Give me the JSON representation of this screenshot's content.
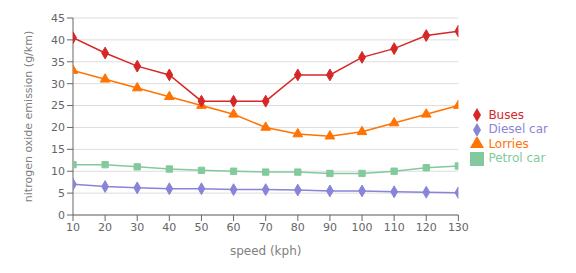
{
  "chart_data": {
    "type": "line",
    "xlabel": "speed (kph)",
    "ylabel": "nitrogen oxide emission (g/km)",
    "x": [
      10,
      20,
      30,
      40,
      50,
      60,
      70,
      80,
      90,
      100,
      110,
      120,
      130
    ],
    "series": [
      {
        "name": "Diesel car",
        "color": "#8884d8",
        "marker": "diamond",
        "values": [
          7,
          6.5,
          6.2,
          6.0,
          6.0,
          5.8,
          5.8,
          5.7,
          5.5,
          5.5,
          5.3,
          5.2,
          5.1
        ]
      },
      {
        "name": "Petrol car",
        "color": "#82ca9d",
        "marker": "square",
        "values": [
          11.5,
          11.5,
          11.0,
          10.5,
          10.2,
          10.0,
          9.8,
          9.8,
          9.5,
          9.5,
          10.0,
          10.8,
          11.2
        ]
      },
      {
        "name": "Lorries",
        "color": "#ff7300",
        "marker": "triangle",
        "values": [
          33,
          31,
          29,
          27,
          25,
          23,
          20,
          18.5,
          18,
          19,
          21,
          23,
          25
        ]
      },
      {
        "name": "Buses",
        "color": "#d62728",
        "marker": "diamond",
        "values": [
          40.5,
          37,
          34,
          32,
          26,
          26,
          26,
          32,
          32,
          36,
          38,
          41,
          42
        ]
      }
    ],
    "xlim": [
      10,
      130
    ],
    "xticks": [
      10,
      20,
      30,
      40,
      50,
      60,
      70,
      80,
      90,
      100,
      110,
      120,
      130
    ],
    "ylim": [
      0,
      45
    ],
    "yticks": [
      0,
      5,
      10,
      15,
      20,
      25,
      30,
      35,
      40,
      45
    ],
    "grid": true,
    "legend": "right"
  }
}
